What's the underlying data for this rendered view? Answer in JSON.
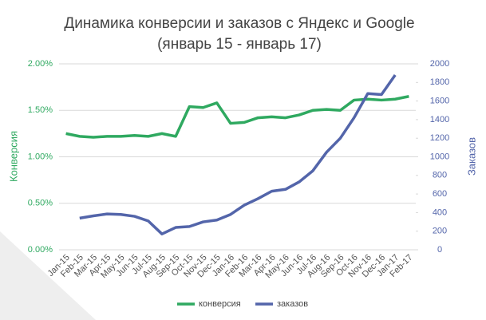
{
  "chart_data": {
    "type": "line",
    "title": "Динамика конверсии и заказов с Яндекс и Google",
    "subtitle": "(январь 15 - январь 17)",
    "ylabel": "Конверсия",
    "y2label": "Заказов",
    "categories": [
      "Jan-15",
      "Feb-15",
      "Mar-15",
      "Apr-15",
      "May-15",
      "Jun-15",
      "Jul-15",
      "Aug-15",
      "Sep-15",
      "Oct-15",
      "Nov-15",
      "Dec-15",
      "Jan-16",
      "Feb-16",
      "Mar-16",
      "Apr-16",
      "May-16",
      "Jun-16",
      "Jul-16",
      "Aug-16",
      "Sep-16",
      "Oct-16",
      "Nov-16",
      "Dec-16",
      "Jan-17",
      "Feb-17"
    ],
    "series": [
      {
        "name": "конверсия",
        "color": "#2fa960",
        "axis": "y",
        "values": [
          1.25,
          1.22,
          1.21,
          1.22,
          1.22,
          1.23,
          1.22,
          1.25,
          1.22,
          1.54,
          1.53,
          1.58,
          1.36,
          1.37,
          1.42,
          1.43,
          1.42,
          1.45,
          1.5,
          1.51,
          1.5,
          1.61,
          1.62,
          1.61,
          1.62,
          1.65
        ]
      },
      {
        "name": "заказов",
        "color": "#5365aa",
        "axis": "y2",
        "values": [
          null,
          340,
          365,
          385,
          380,
          360,
          310,
          170,
          240,
          250,
          300,
          320,
          380,
          480,
          550,
          630,
          650,
          730,
          850,
          1050,
          1200,
          1420,
          1680,
          1670,
          1880,
          null
        ]
      }
    ],
    "ylim": [
      0,
      2
    ],
    "yticks": [
      {
        "value": 0,
        "label": "0.00%"
      },
      {
        "value": 0.5,
        "label": "0.50%"
      },
      {
        "value": 1,
        "label": "1.00%"
      },
      {
        "value": 1.5,
        "label": "1.50%"
      },
      {
        "value": 2,
        "label": "2.00%"
      }
    ],
    "y2lim": [
      0,
      2000
    ],
    "y2ticks": [
      0,
      200,
      400,
      600,
      800,
      1000,
      1200,
      1400,
      1600,
      1800,
      2000
    ],
    "grid": true
  }
}
